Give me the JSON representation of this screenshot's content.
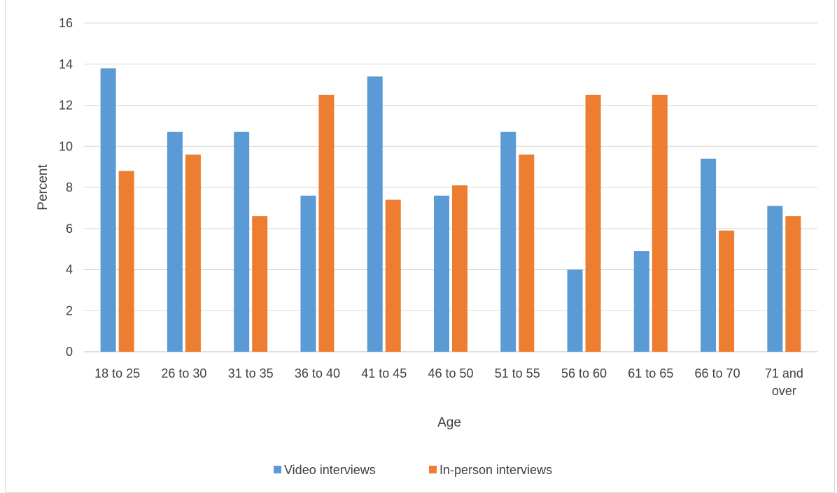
{
  "chart_data": {
    "type": "bar",
    "title": "",
    "xlabel": "Age",
    "ylabel": "Percent",
    "ylim": [
      0,
      16
    ],
    "yticks": [
      "0",
      "2",
      "4",
      "6",
      "8",
      "10",
      "12",
      "14",
      "16"
    ],
    "grid": true,
    "legend_position": "bottom",
    "categories": [
      [
        "18 to 25"
      ],
      [
        "26 to 30"
      ],
      [
        "31 to 35"
      ],
      [
        "36 to 40"
      ],
      [
        "41 to 45"
      ],
      [
        "46 to 50"
      ],
      [
        "51 to 55"
      ],
      [
        "56 to 60"
      ],
      [
        "61 to 65"
      ],
      [
        "66 to 70"
      ],
      [
        "71 and",
        "over"
      ]
    ],
    "series": [
      {
        "name": "Video interviews",
        "color": "#5b9bd5",
        "values": [
          13.8,
          10.7,
          10.7,
          7.6,
          13.4,
          7.6,
          10.7,
          4.0,
          4.9,
          9.4,
          7.1
        ]
      },
      {
        "name": "In-person interviews",
        "color": "#ed7d31",
        "values": [
          8.8,
          9.6,
          6.6,
          12.5,
          7.4,
          8.1,
          9.6,
          12.5,
          12.5,
          5.9,
          6.6
        ]
      }
    ]
  }
}
